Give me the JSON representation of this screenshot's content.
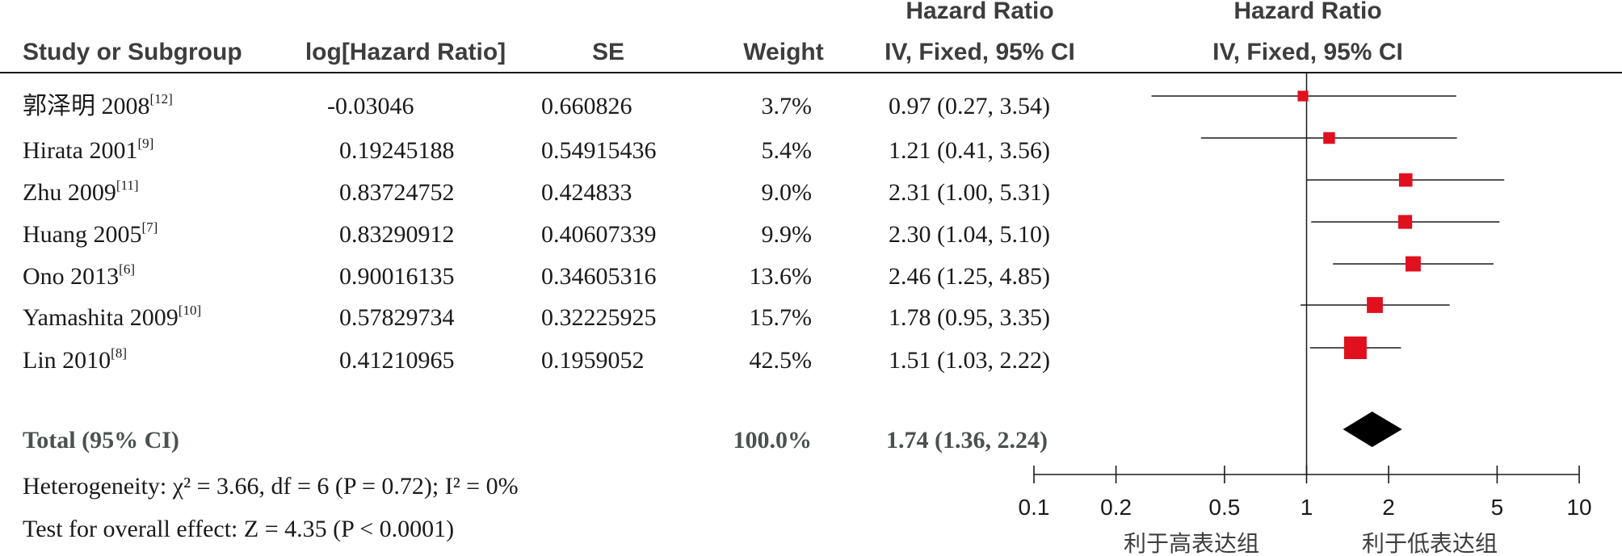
{
  "header": {
    "col_study": "Study or Subgroup",
    "col_loghr": "log[Hazard Ratio]",
    "col_se": "SE",
    "col_weight": "Weight",
    "col_hr_line1": "Hazard Ratio",
    "col_hr_line2": "IV, Fixed, 95% CI",
    "col_plot_line1": "Hazard Ratio",
    "col_plot_line2": "IV, Fixed, 95% CI"
  },
  "studies": [
    {
      "name": "郭泽明 2008",
      "ref": "[12]",
      "loghr": "-0.03046",
      "se": "0.660826",
      "weight": "3.7%",
      "ci_text": "0.97 (0.27, 3.54)"
    },
    {
      "name": "Hirata 2001",
      "ref": "[9]",
      "loghr": "0.19245188",
      "se": "0.54915436",
      "weight": "5.4%",
      "ci_text": "1.21 (0.41, 3.56)"
    },
    {
      "name": "Zhu 2009",
      "ref": "[11]",
      "loghr": "0.83724752",
      "se": "0.424833",
      "weight": "9.0%",
      "ci_text": "2.31 (1.00, 5.31)"
    },
    {
      "name": "Huang 2005",
      "ref": "[7]",
      "loghr": "0.83290912",
      "se": "0.40607339",
      "weight": "9.9%",
      "ci_text": "2.30 (1.04, 5.10)"
    },
    {
      "name": "Ono 2013",
      "ref": "[6]",
      "loghr": "0.90016135",
      "se": "0.34605316",
      "weight": "13.6%",
      "ci_text": "2.46 (1.25, 4.85)"
    },
    {
      "name": "Yamashita 2009",
      "ref": "[10]",
      "loghr": "0.57829734",
      "se": "0.32225925",
      "weight": "15.7%",
      "ci_text": "1.78 (0.95, 3.35)"
    },
    {
      "name": "Lin 2010",
      "ref": "[8]",
      "loghr": "0.41210965",
      "se": "0.1959052",
      "weight": "42.5%",
      "ci_text": "1.51 (1.03, 2.22)"
    }
  ],
  "total": {
    "label": "Total (95% CI)",
    "weight": "100.0%",
    "ci_text": "1.74 (1.36, 2.24)"
  },
  "footer": {
    "heterogeneity": "Heterogeneity: χ² = 3.66, df = 6 (P = 0.72); I² = 0%",
    "overall_effect": "Test for overall effect: Z = 4.35 (P < 0.0001)"
  },
  "favours": {
    "left": "利于高表达组",
    "right": "利于低表达组"
  },
  "colors": {
    "marker": "#e0101f",
    "diamond": "#000000",
    "line": "#1a1a1a"
  },
  "chart_data": {
    "type": "forest",
    "scale": "log",
    "xlim": [
      0.1,
      10
    ],
    "xticks": [
      0.1,
      0.2,
      0.5,
      1,
      2,
      5,
      10
    ],
    "xtick_labels": [
      "0.1",
      "0.2",
      "0.5",
      "1",
      "2",
      "5",
      "10"
    ],
    "reference_line": 1,
    "studies": [
      {
        "name": "郭泽明 2008",
        "hr": 0.97,
        "lower": 0.27,
        "upper": 3.54,
        "weight": 3.7
      },
      {
        "name": "Hirata 2001",
        "hr": 1.21,
        "lower": 0.41,
        "upper": 3.56,
        "weight": 5.4
      },
      {
        "name": "Zhu 2009",
        "hr": 2.31,
        "lower": 1.0,
        "upper": 5.31,
        "weight": 9.0
      },
      {
        "name": "Huang 2005",
        "hr": 2.3,
        "lower": 1.04,
        "upper": 5.1,
        "weight": 9.9
      },
      {
        "name": "Ono 2013",
        "hr": 2.46,
        "lower": 1.25,
        "upper": 4.85,
        "weight": 13.6
      },
      {
        "name": "Yamashita 2009",
        "hr": 1.78,
        "lower": 0.95,
        "upper": 3.35,
        "weight": 15.7
      },
      {
        "name": "Lin 2010",
        "hr": 1.51,
        "lower": 1.03,
        "upper": 2.22,
        "weight": 42.5
      }
    ],
    "total": {
      "hr": 1.74,
      "lower": 1.36,
      "upper": 2.24
    }
  }
}
